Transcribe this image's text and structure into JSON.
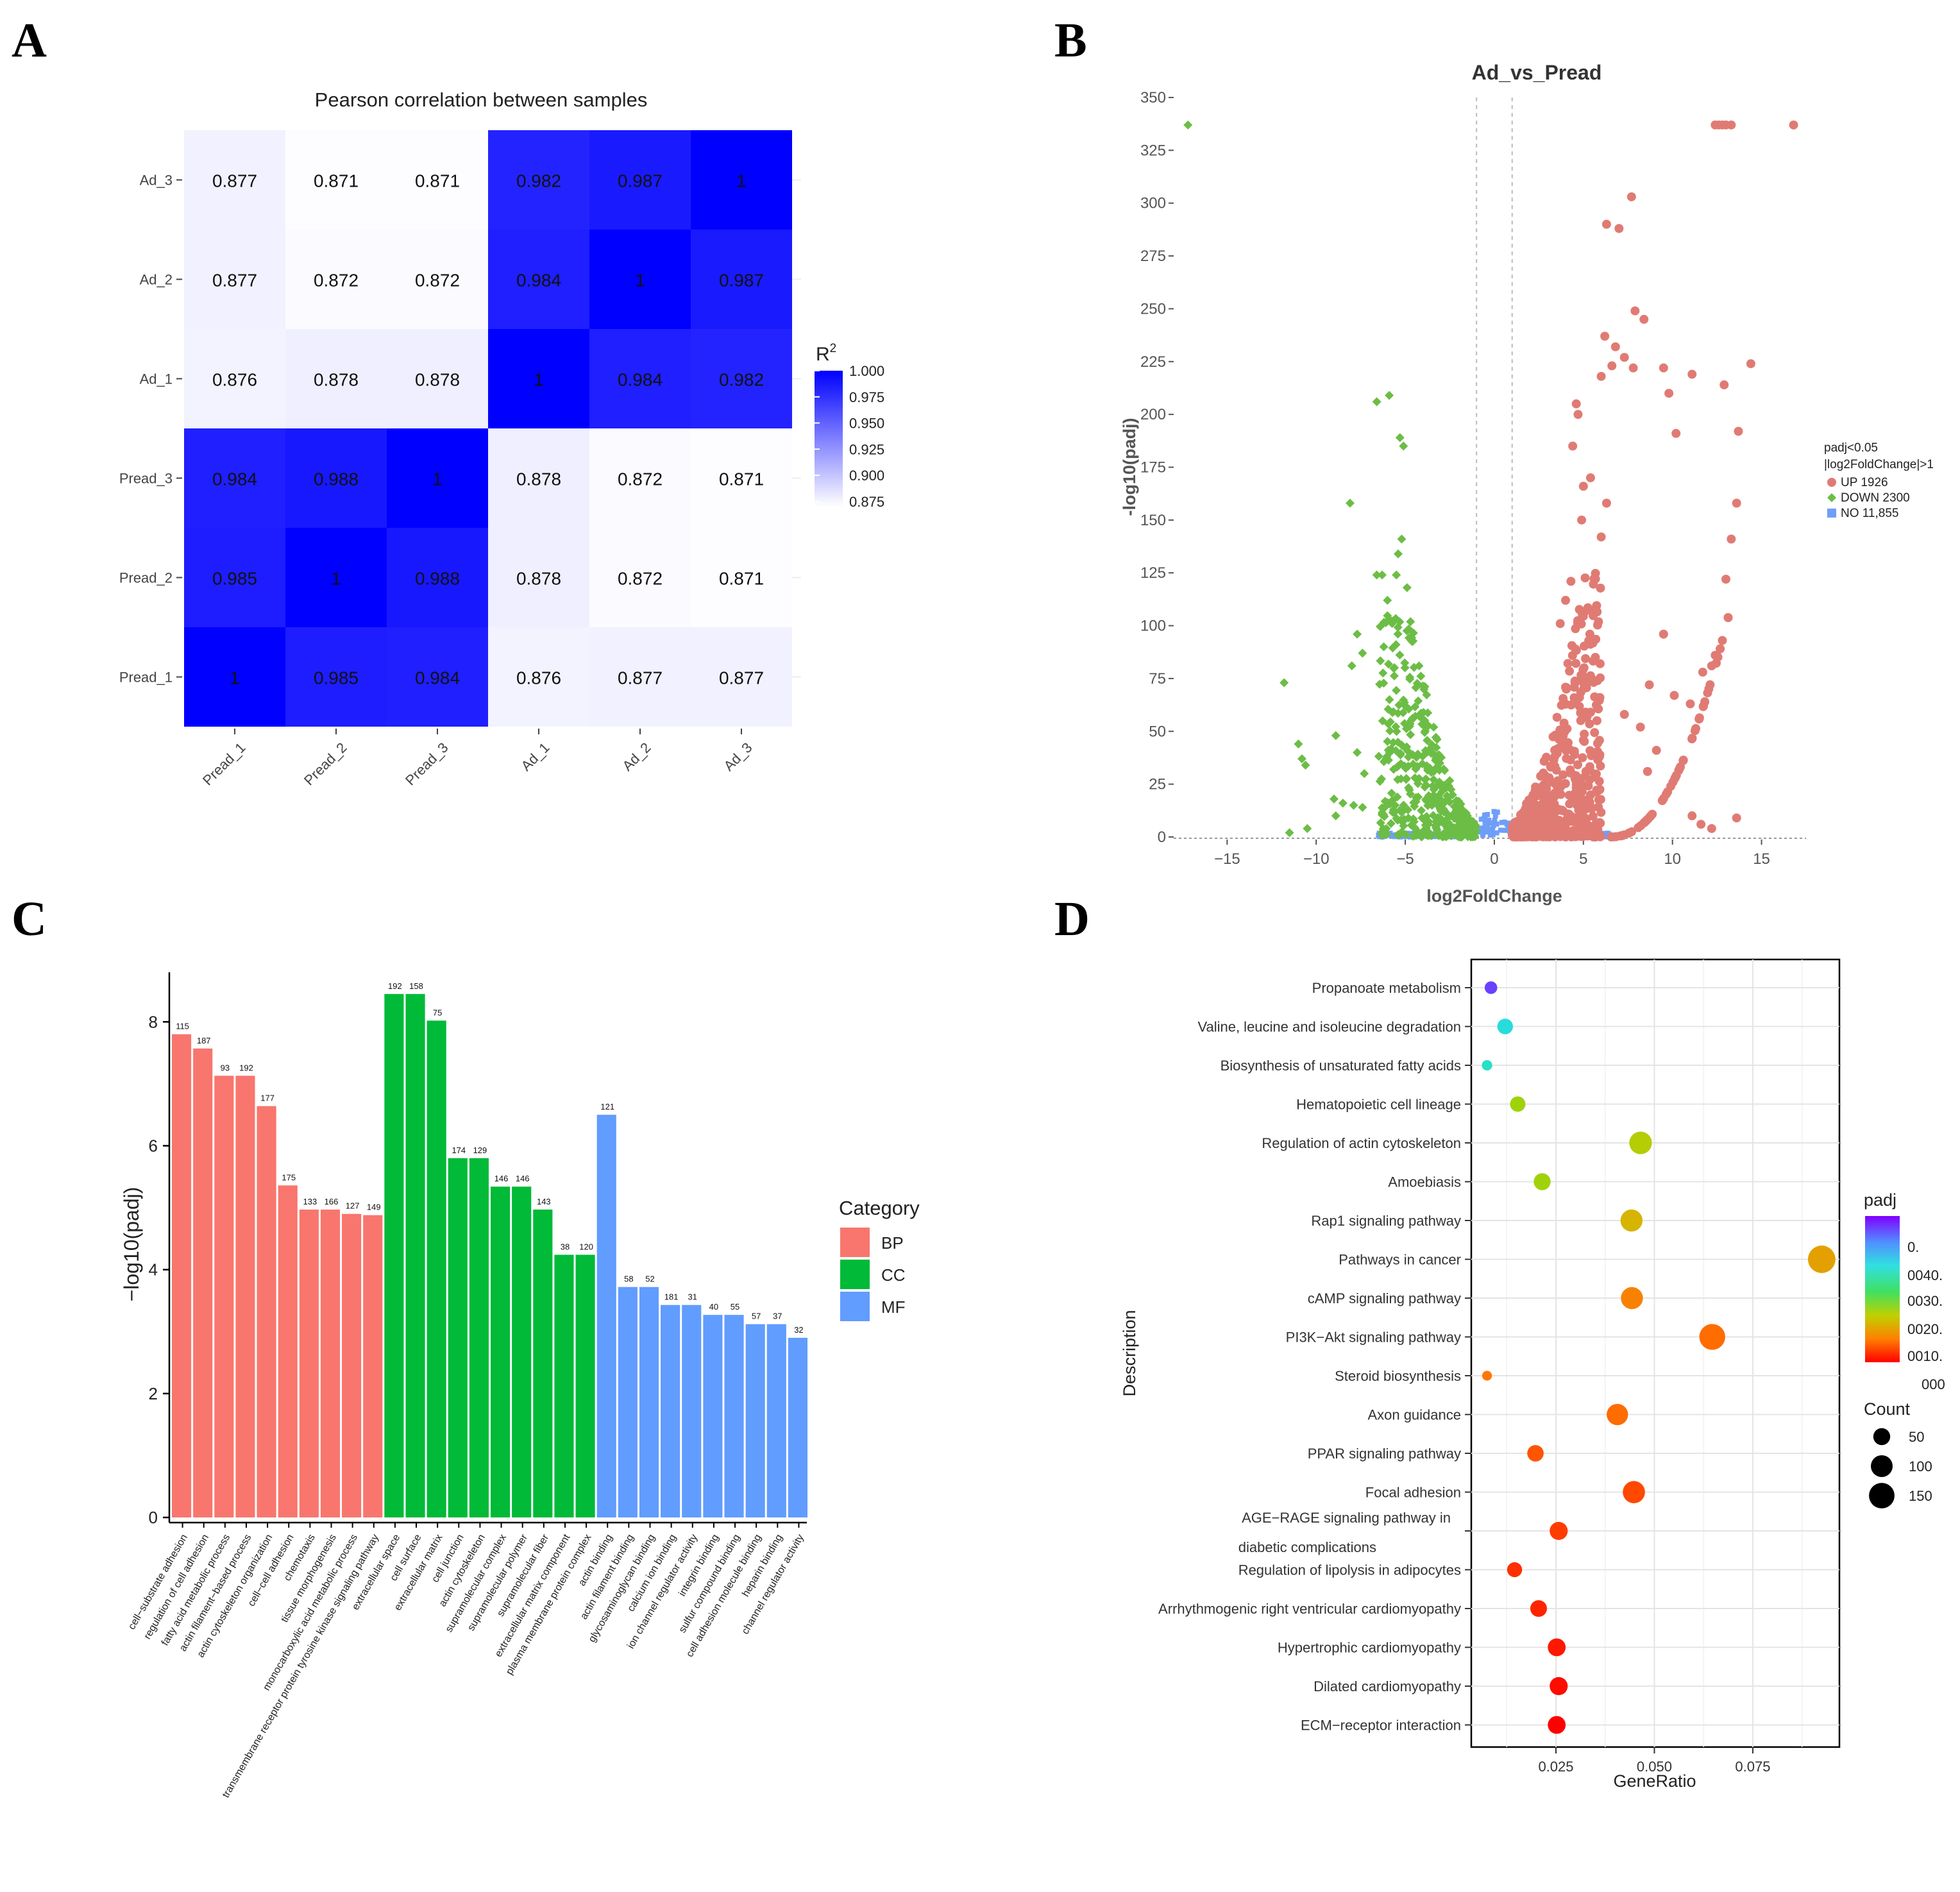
{
  "panels": {
    "A": "A",
    "B": "B",
    "C": "C",
    "D": "D"
  },
  "chart_data": [
    {
      "id": "A",
      "type": "heatmap",
      "title": "Pearson correlation between samples",
      "rows": [
        "Ad_3",
        "Ad_2",
        "Ad_1",
        "Pread_3",
        "Pread_2",
        "Pread_1"
      ],
      "cols": [
        "Pread_1",
        "Pread_2",
        "Pread_3",
        "Ad_1",
        "Ad_2",
        "Ad_3"
      ],
      "values": [
        [
          "0.877",
          "0.871",
          "0.871",
          "0.982",
          "0.987",
          "1"
        ],
        [
          "0.877",
          "0.872",
          "0.872",
          "0.984",
          "1",
          "0.987"
        ],
        [
          "0.876",
          "0.878",
          "0.878",
          "1",
          "0.984",
          "0.982"
        ],
        [
          "0.984",
          "0.988",
          "1",
          "0.878",
          "0.872",
          "0.871"
        ],
        [
          "0.985",
          "1",
          "0.988",
          "0.878",
          "0.872",
          "0.871"
        ],
        [
          "1",
          "0.985",
          "0.984",
          "0.876",
          "0.877",
          "0.877"
        ]
      ],
      "legend": {
        "title": "R",
        "title_sup": "2",
        "ticks": [
          "1.000",
          "0.975",
          "0.950",
          "0.925",
          "0.900",
          "0.875"
        ],
        "range": [
          0.87,
          1.0
        ],
        "colors": [
          "#ffffff",
          "#0000ff"
        ]
      }
    },
    {
      "id": "B",
      "type": "scatter",
      "title": "Ad_vs_Pread",
      "xlabel": "log2FoldChange",
      "ylabel": "-log10(padj)",
      "xlim": [
        -18,
        17.5
      ],
      "ylim": [
        0,
        350
      ],
      "xticks": [
        "−15",
        "−10",
        "−5",
        "0",
        "5",
        "10",
        "15"
      ],
      "xtick_values": [
        -15,
        -10,
        -5,
        0,
        5,
        10,
        15
      ],
      "yticks": [
        "0",
        "25",
        "50",
        "75",
        "100",
        "125",
        "150",
        "175",
        "200",
        "225",
        "250",
        "275",
        "300",
        "325",
        "350"
      ],
      "thresholds": {
        "log2fc": [
          -1,
          1
        ]
      },
      "legend": {
        "title_line1": "padj<0.05",
        "title_line2": "|log2FoldChange|>1",
        "entries": [
          {
            "label": "UP 1926",
            "color": "#e07b74"
          },
          {
            "label": "DOWN 2300",
            "color": "#6cbd45"
          },
          {
            "label": "NO 11,855",
            "color": "#6f9ef8"
          }
        ]
      },
      "up_points": [
        [
          12.4,
          337
        ],
        [
          12.6,
          337
        ],
        [
          12.8,
          337
        ],
        [
          13.0,
          337
        ],
        [
          13.3,
          337
        ],
        [
          16.8,
          337
        ],
        [
          7.7,
          303
        ],
        [
          6.3,
          290
        ],
        [
          7.0,
          288
        ],
        [
          7.9,
          249
        ],
        [
          8.4,
          245
        ],
        [
          6.2,
          237
        ],
        [
          6.8,
          232
        ],
        [
          7.3,
          227
        ],
        [
          6.6,
          223
        ],
        [
          7.8,
          222
        ],
        [
          9.5,
          222
        ],
        [
          6.0,
          218
        ],
        [
          11.1,
          219
        ],
        [
          12.9,
          214
        ],
        [
          14.4,
          224
        ],
        [
          9.8,
          210
        ],
        [
          4.6,
          205
        ],
        [
          4.7,
          200
        ],
        [
          10.2,
          191
        ],
        [
          13.7,
          192
        ],
        [
          4.4,
          185
        ],
        [
          5.4,
          170
        ],
        [
          5.0,
          166
        ],
        [
          6.3,
          158
        ],
        [
          13.6,
          158
        ],
        [
          4.9,
          150
        ],
        [
          6.0,
          142
        ],
        [
          13.3,
          141
        ],
        [
          4.3,
          121
        ],
        [
          4.0,
          112
        ],
        [
          13.0,
          122
        ],
        [
          3.7,
          101
        ],
        [
          9.5,
          96
        ],
        [
          12.8,
          93
        ],
        [
          12.4,
          86
        ],
        [
          12.2,
          81
        ],
        [
          11.7,
          78
        ],
        [
          8.7,
          72
        ],
        [
          10.1,
          67
        ],
        [
          11.0,
          63
        ],
        [
          7.3,
          58
        ],
        [
          8.2,
          52
        ],
        [
          9.1,
          41
        ],
        [
          8.6,
          31
        ],
        [
          13.6,
          9
        ],
        [
          11.1,
          10
        ],
        [
          11.6,
          6
        ],
        [
          12.2,
          4
        ]
      ],
      "down_points": [
        [
          -17.2,
          337
        ],
        [
          -5.9,
          209
        ],
        [
          -6.6,
          206
        ],
        [
          -5.3,
          189
        ],
        [
          -5.1,
          185
        ],
        [
          -8.1,
          158
        ],
        [
          -5.2,
          141
        ],
        [
          -5.4,
          134
        ],
        [
          -5.5,
          124
        ],
        [
          -6.3,
          124
        ],
        [
          -6.6,
          124
        ],
        [
          -4.9,
          118
        ],
        [
          -6.0,
          112
        ],
        [
          -5.8,
          102
        ],
        [
          -7.7,
          96
        ],
        [
          -7.4,
          87
        ],
        [
          -11.8,
          73
        ],
        [
          -8.0,
          81
        ],
        [
          -11.0,
          44
        ],
        [
          -10.8,
          37
        ],
        [
          -10.6,
          34
        ],
        [
          -8.9,
          48
        ],
        [
          -7.7,
          40
        ],
        [
          -7.3,
          30
        ],
        [
          -9.0,
          18
        ],
        [
          -8.5,
          16
        ],
        [
          -7.9,
          15
        ],
        [
          -7.4,
          14
        ],
        [
          -8.9,
          10
        ],
        [
          -10.5,
          4
        ],
        [
          -11.5,
          2
        ]
      ],
      "up_band": {
        "x_start": 1.0,
        "x_end": 6.0,
        "y_scale": 95
      },
      "down_band": {
        "x_start": -1.0,
        "x_end": -6.5,
        "y_scale": 75
      }
    },
    {
      "id": "C",
      "type": "bar",
      "xlabel": "",
      "ylabel": "−log10(padj)",
      "ylim": [
        0,
        8.8
      ],
      "yticks": [
        "0",
        "2",
        "4",
        "6",
        "8"
      ],
      "legend": {
        "title": "Category",
        "entries": [
          {
            "label": "BP",
            "color": "#f8766d"
          },
          {
            "label": "CC",
            "color": "#00ba38"
          },
          {
            "label": "MF",
            "color": "#619cff"
          }
        ]
      },
      "categories": [
        "cell−substrate adhesion",
        "regulation of cell adhesion",
        "fatty acid metabolic process",
        "actin filament−based process",
        "actin cytoskeleton organization",
        "cell−cell adhesion",
        "chemotaxis",
        "tissue morphogenesis",
        "monocarboxylic acid metabolic process",
        "transmembrane receptor protein tyrosine kinase signaling pathway",
        "extracellular space",
        "cell surface",
        "extracellular matrix",
        "cell junction",
        "actin cytoskeleton",
        "supramolecular complex",
        "supramolecular polymer",
        "supramolecular fiber",
        "extracellular matrix component",
        "plasma membrane protein complex",
        "actin binding",
        "actin filament binding",
        "glycosaminoglycan binding",
        "calcium ion binding",
        "ion channel regulator activity",
        "integrin binding",
        "sulfur compound binding",
        "cell adhesion molecule binding",
        "heparin binding",
        "channel regulator activity"
      ],
      "groups": [
        "BP",
        "BP",
        "BP",
        "BP",
        "BP",
        "BP",
        "BP",
        "BP",
        "BP",
        "BP",
        "CC",
        "CC",
        "CC",
        "CC",
        "CC",
        "CC",
        "CC",
        "CC",
        "CC",
        "CC",
        "MF",
        "MF",
        "MF",
        "MF",
        "MF",
        "MF",
        "MF",
        "MF",
        "MF",
        "MF"
      ],
      "values": [
        7.8,
        7.57,
        7.13,
        7.13,
        6.64,
        5.36,
        4.97,
        4.97,
        4.9,
        4.88,
        8.45,
        8.45,
        8.02,
        5.8,
        5.8,
        5.34,
        5.34,
        4.97,
        4.24,
        4.24,
        6.5,
        3.72,
        3.72,
        3.43,
        3.43,
        3.27,
        3.27,
        3.12,
        3.12,
        2.9
      ],
      "counts": [
        "115",
        "187",
        "93",
        "192",
        "177",
        "175",
        "133",
        "166",
        "127",
        "149",
        "192",
        "158",
        "75",
        "174",
        "129",
        "146",
        "146",
        "143",
        "38",
        "120",
        "121",
        "58",
        "52",
        "181",
        "31",
        "40",
        "55",
        "57",
        "37",
        "32"
      ]
    },
    {
      "id": "D",
      "type": "scatter",
      "xlabel": "GeneRatio",
      "ylabel": "Description",
      "xlim": [
        0.0035,
        0.097
      ],
      "xticks": [
        "0.025",
        "0.050",
        "0.075"
      ],
      "xtick_values": [
        0.025,
        0.05,
        0.075
      ],
      "terms": [
        "Propanoate metabolism",
        "Valine, leucine and isoleucine degradation",
        "Biosynthesis of unsaturated fatty acids",
        "Hematopoietic cell lineage",
        "Regulation of actin cytoskeleton",
        "Amoebiasis",
        "Rap1 signaling pathway",
        "Pathways in cancer",
        "cAMP signaling pathway",
        "PI3K−Akt signaling pathway",
        "Steroid biosynthesis",
        "Axon guidance",
        "PPAR signaling pathway",
        "Focal adhesion",
        "AGE−RAGE signaling pathway in",
        "Regulation of lipolysis in adipocytes",
        "Arrhythmogenic right ventricular cardiomyopathy",
        "Hypertrophic cardiomyopathy",
        "Dilated cardiomyopathy",
        "ECM−receptor interaction"
      ],
      "term_line2": "diabetic complications",
      "gene_ratio": [
        0.0085,
        0.0121,
        0.0075,
        0.0153,
        0.0465,
        0.0215,
        0.0442,
        0.0925,
        0.0443,
        0.0647,
        0.0075,
        0.0406,
        0.0198,
        0.0448,
        0.0257,
        0.0145,
        0.0206,
        0.0252,
        0.0257,
        0.0252
      ],
      "count": [
        20,
        40,
        10,
        38,
        110,
        50,
        103,
        180,
        103,
        155,
        8,
        95,
        46,
        105,
        60,
        35,
        48,
        58,
        60,
        58
      ],
      "padj": [
        0.0046,
        0.0036,
        0.0034,
        0.0022,
        0.0021,
        0.0022,
        0.0018,
        0.0016,
        0.0013,
        0.0011,
        0.0012,
        0.0011,
        0.0009,
        0.0008,
        0.0007,
        0.0006,
        0.0005,
        0.0004,
        0.0003,
        0.0002
      ],
      "color_legend": {
        "title": "padj",
        "ticks": [
          "0.",
          "0040.",
          "0030.",
          "0020.",
          "0010.",
          "000"
        ]
      },
      "size_legend": {
        "title": "Count",
        "ticks": [
          "50",
          "100",
          "150"
        ]
      }
    }
  ]
}
